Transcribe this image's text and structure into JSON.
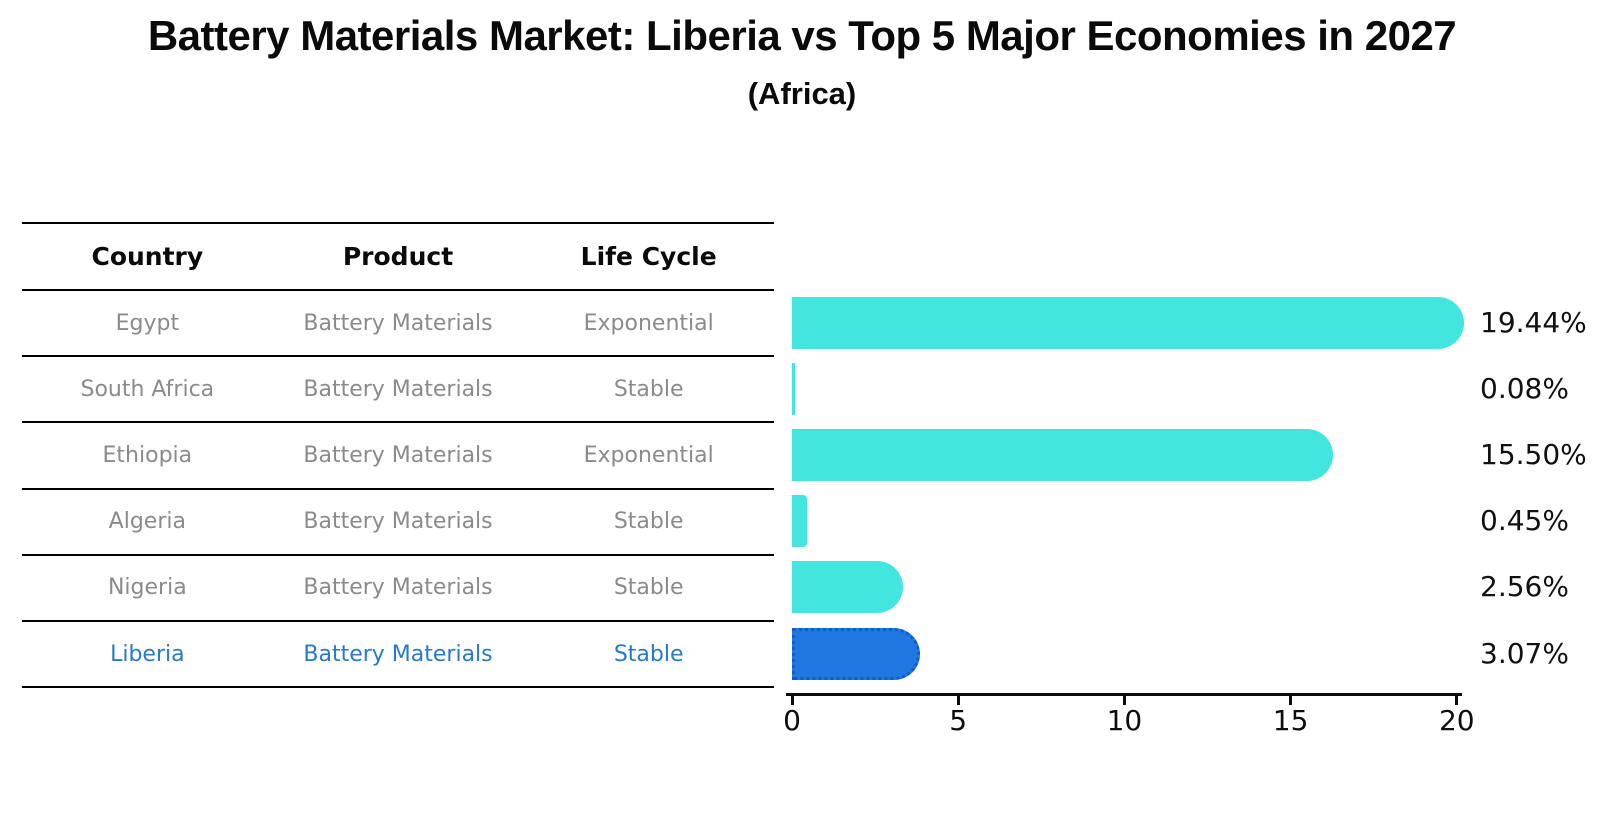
{
  "title": "Battery Materials Market: Liberia vs Top 5 Major Economies in 2027",
  "subtitle": "(Africa)",
  "colors": {
    "bar_default": "#42E6DF",
    "bar_highlight": "#1E78E0",
    "bar_highlight_border": "#0F5BD0",
    "highlight_text": "#2979C9",
    "table_text": "#8B8B8B",
    "axis_text": "#0D0D0D"
  },
  "table": {
    "headers": [
      "Country",
      "Product",
      "Life Cycle"
    ],
    "rows": [
      {
        "country": "Egypt",
        "product": "Battery Materials",
        "life_cycle": "Exponential",
        "highlight": false
      },
      {
        "country": "South Africa",
        "product": "Battery Materials",
        "life_cycle": "Stable",
        "highlight": false
      },
      {
        "country": "Ethiopia",
        "product": "Battery Materials",
        "life_cycle": "Exponential",
        "highlight": false
      },
      {
        "country": "Algeria",
        "product": "Battery Materials",
        "life_cycle": "Stable",
        "highlight": false
      },
      {
        "country": "Nigeria",
        "product": "Battery Materials",
        "life_cycle": "Stable",
        "highlight": false
      },
      {
        "country": "Liberia",
        "product": "Battery Materials",
        "life_cycle": "Stable",
        "highlight": true
      }
    ]
  },
  "chart_data": {
    "type": "bar",
    "orientation": "horizontal",
    "title": "Battery Materials Market: Liberia vs Top 5 Major Economies in 2027",
    "subtitle": "(Africa)",
    "categories": [
      "Egypt",
      "South Africa",
      "Ethiopia",
      "Algeria",
      "Nigeria",
      "Liberia"
    ],
    "values": [
      19.44,
      0.08,
      15.5,
      0.45,
      2.56,
      3.07
    ],
    "value_labels": [
      "19.44%",
      "0.08%",
      "15.50%",
      "0.45%",
      "2.56%",
      "3.07%"
    ],
    "unit": "%",
    "highlight_category": "Liberia",
    "xlim": [
      0,
      20
    ],
    "x_ticks": [
      0,
      5,
      10,
      15,
      20
    ],
    "grid": false,
    "legend": false
  }
}
